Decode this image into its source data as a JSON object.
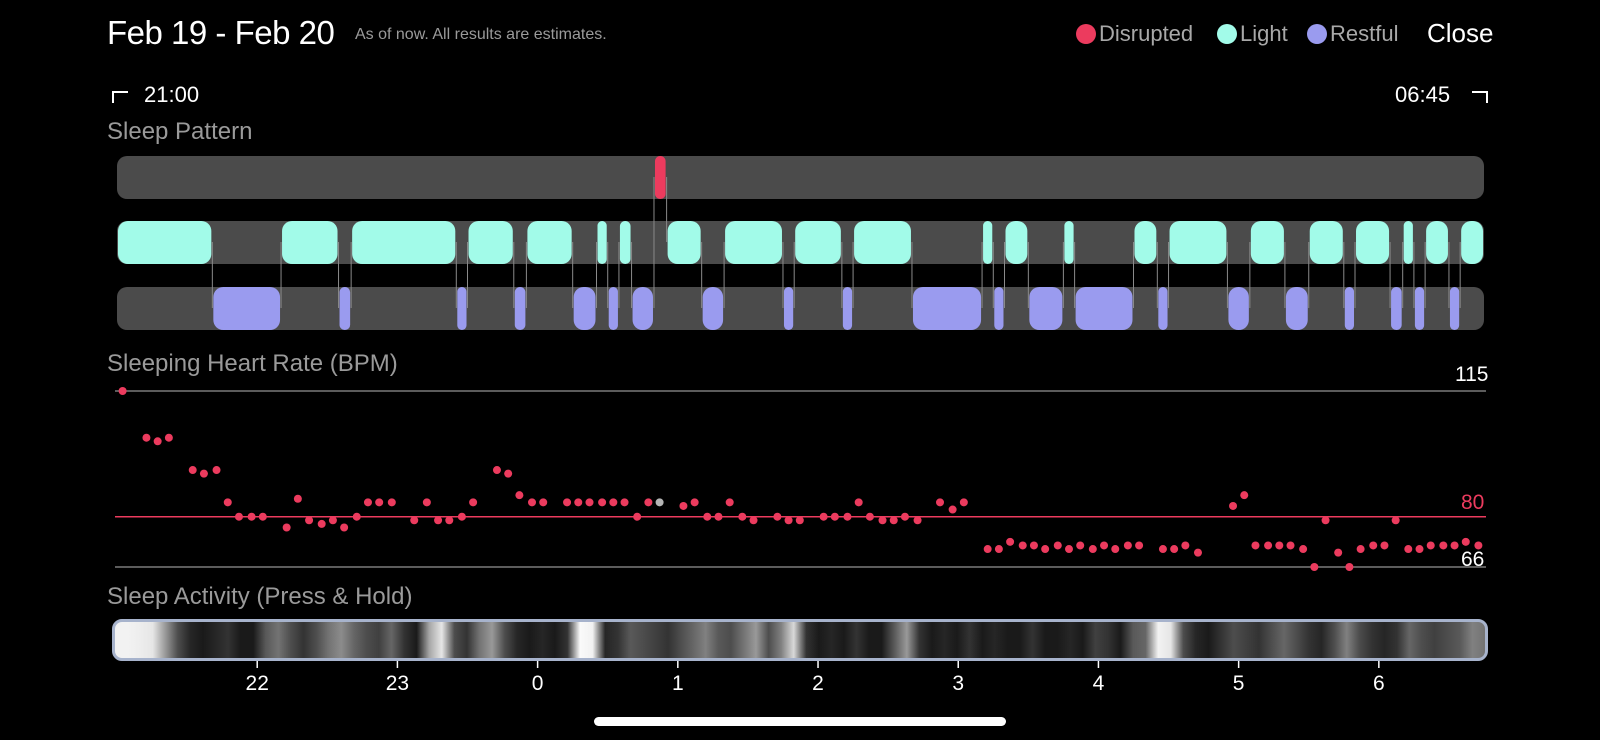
{
  "header": {
    "title": "Feb 19 - Feb 20",
    "subtitle": "As of now. All results are estimates.",
    "close_label": "Close"
  },
  "legend": [
    {
      "label": "Disrupted",
      "color": "#ec3b5e"
    },
    {
      "label": "Light",
      "color": "#a2fbe9"
    },
    {
      "label": "Restful",
      "color": "#9a9bef"
    }
  ],
  "time_range": {
    "start": "21:00",
    "end": "06:45"
  },
  "sleep_pattern": {
    "title": "Sleep Pattern",
    "colors": {
      "disrupted": "#ec3b5e",
      "light": "#a2fbe9",
      "restful": "#9a9bef",
      "track": "#4b4b4b"
    },
    "segments": [
      {
        "stage": "light",
        "start": 21.0,
        "end": 21.68
      },
      {
        "stage": "restful",
        "start": 21.68,
        "end": 22.17
      },
      {
        "stage": "light",
        "start": 22.17,
        "end": 22.58
      },
      {
        "stage": "restful",
        "start": 22.58,
        "end": 22.67
      },
      {
        "stage": "light",
        "start": 22.67,
        "end": 23.42
      },
      {
        "stage": "restful",
        "start": 23.42,
        "end": 23.5
      },
      {
        "stage": "light",
        "start": 23.5,
        "end": 23.83
      },
      {
        "stage": "restful",
        "start": 23.83,
        "end": 23.92
      },
      {
        "stage": "light",
        "start": 23.92,
        "end": 24.25
      },
      {
        "stage": "restful",
        "start": 24.25,
        "end": 24.42
      },
      {
        "stage": "light",
        "start": 24.42,
        "end": 24.5
      },
      {
        "stage": "restful",
        "start": 24.5,
        "end": 24.58
      },
      {
        "stage": "light",
        "start": 24.58,
        "end": 24.67
      },
      {
        "stage": "restful",
        "start": 24.67,
        "end": 24.83
      },
      {
        "stage": "disrupted",
        "start": 24.83,
        "end": 24.92
      },
      {
        "stage": "light",
        "start": 24.92,
        "end": 25.17
      },
      {
        "stage": "restful",
        "start": 25.17,
        "end": 25.33
      },
      {
        "stage": "light",
        "start": 25.33,
        "end": 25.75
      },
      {
        "stage": "restful",
        "start": 25.75,
        "end": 25.83
      },
      {
        "stage": "light",
        "start": 25.83,
        "end": 26.17
      },
      {
        "stage": "restful",
        "start": 26.17,
        "end": 26.25
      },
      {
        "stage": "light",
        "start": 26.25,
        "end": 26.67
      },
      {
        "stage": "restful",
        "start": 26.67,
        "end": 27.17
      },
      {
        "stage": "light",
        "start": 27.17,
        "end": 27.25
      },
      {
        "stage": "restful",
        "start": 27.25,
        "end": 27.33
      },
      {
        "stage": "light",
        "start": 27.33,
        "end": 27.5
      },
      {
        "stage": "restful",
        "start": 27.5,
        "end": 27.75
      },
      {
        "stage": "light",
        "start": 27.75,
        "end": 27.83
      },
      {
        "stage": "restful",
        "start": 27.83,
        "end": 28.25
      },
      {
        "stage": "light",
        "start": 28.25,
        "end": 28.42
      },
      {
        "stage": "restful",
        "start": 28.42,
        "end": 28.5
      },
      {
        "stage": "light",
        "start": 28.5,
        "end": 28.92
      },
      {
        "stage": "restful",
        "start": 28.92,
        "end": 29.08
      },
      {
        "stage": "light",
        "start": 29.08,
        "end": 29.33
      },
      {
        "stage": "restful",
        "start": 29.33,
        "end": 29.5
      },
      {
        "stage": "light",
        "start": 29.5,
        "end": 29.75
      },
      {
        "stage": "restful",
        "start": 29.75,
        "end": 29.83
      },
      {
        "stage": "light",
        "start": 29.83,
        "end": 30.08
      },
      {
        "stage": "restful",
        "start": 30.08,
        "end": 30.17
      },
      {
        "stage": "light",
        "start": 30.17,
        "end": 30.25
      },
      {
        "stage": "restful",
        "start": 30.25,
        "end": 30.33
      },
      {
        "stage": "light",
        "start": 30.33,
        "end": 30.5
      },
      {
        "stage": "restful",
        "start": 30.5,
        "end": 30.58
      },
      {
        "stage": "light",
        "start": 30.58,
        "end": 30.75
      }
    ]
  },
  "heart_rate": {
    "title": "Sleeping Heart Rate (BPM)",
    "max_label": "115",
    "avg_label": "80",
    "min_label": "66",
    "colors": {
      "point": "#ec3b5e",
      "avg_line": "#ec3b5e",
      "axis_line": "#7a7a7a",
      "highlight": "#b5b5b5"
    },
    "chart_data": {
      "type": "scatter",
      "x_unit": "hours since midnight of Feb 19",
      "y_unit": "BPM",
      "ylim": [
        66,
        115
      ],
      "xlim": [
        21.0,
        30.75
      ],
      "reference_lines": [
        115,
        80,
        66
      ],
      "highlight_index": 46,
      "points": [
        [
          21.04,
          115
        ],
        [
          21.21,
          102
        ],
        [
          21.29,
          101
        ],
        [
          21.37,
          102
        ],
        [
          21.54,
          93
        ],
        [
          21.62,
          92
        ],
        [
          21.71,
          93
        ],
        [
          21.79,
          84
        ],
        [
          21.87,
          80
        ],
        [
          21.96,
          80
        ],
        [
          22.04,
          80
        ],
        [
          22.21,
          77
        ],
        [
          22.29,
          85
        ],
        [
          22.37,
          79
        ],
        [
          22.46,
          78
        ],
        [
          22.54,
          79
        ],
        [
          22.62,
          77
        ],
        [
          22.71,
          80
        ],
        [
          22.79,
          84
        ],
        [
          22.87,
          84
        ],
        [
          22.96,
          84
        ],
        [
          23.12,
          79
        ],
        [
          23.21,
          84
        ],
        [
          23.29,
          79
        ],
        [
          23.37,
          79
        ],
        [
          23.46,
          80
        ],
        [
          23.54,
          84
        ],
        [
          23.71,
          93
        ],
        [
          23.79,
          92
        ],
        [
          23.87,
          86
        ],
        [
          23.96,
          84
        ],
        [
          24.04,
          84
        ],
        [
          24.21,
          84
        ],
        [
          24.29,
          84
        ],
        [
          24.37,
          84
        ],
        [
          24.46,
          84
        ],
        [
          24.54,
          84
        ],
        [
          24.62,
          84
        ],
        [
          24.71,
          80
        ],
        [
          24.79,
          84
        ],
        [
          25.04,
          83
        ],
        [
          25.12,
          84
        ],
        [
          25.21,
          80
        ],
        [
          25.29,
          80
        ],
        [
          25.37,
          84
        ],
        [
          25.46,
          80
        ],
        [
          24.87,
          84
        ],
        [
          25.54,
          79
        ],
        [
          25.71,
          80
        ],
        [
          25.79,
          79
        ],
        [
          25.87,
          79
        ],
        [
          26.04,
          80
        ],
        [
          26.12,
          80
        ],
        [
          26.21,
          80
        ],
        [
          26.29,
          84
        ],
        [
          26.37,
          80
        ],
        [
          26.46,
          79
        ],
        [
          26.54,
          79
        ],
        [
          26.62,
          80
        ],
        [
          26.71,
          79
        ],
        [
          26.87,
          84
        ],
        [
          26.96,
          82
        ],
        [
          27.04,
          84
        ],
        [
          27.21,
          71
        ],
        [
          27.29,
          71
        ],
        [
          27.37,
          73
        ],
        [
          27.46,
          72
        ],
        [
          27.54,
          72
        ],
        [
          27.62,
          71
        ],
        [
          27.71,
          72
        ],
        [
          27.79,
          71
        ],
        [
          27.87,
          72
        ],
        [
          27.96,
          71
        ],
        [
          28.04,
          72
        ],
        [
          28.12,
          71
        ],
        [
          28.21,
          72
        ],
        [
          28.29,
          72
        ],
        [
          28.46,
          71
        ],
        [
          28.54,
          71
        ],
        [
          28.62,
          72
        ],
        [
          28.71,
          70
        ],
        [
          28.96,
          83
        ],
        [
          29.04,
          86
        ],
        [
          29.12,
          72
        ],
        [
          29.21,
          72
        ],
        [
          29.29,
          72
        ],
        [
          29.37,
          72
        ],
        [
          29.46,
          71
        ],
        [
          29.54,
          66
        ],
        [
          29.62,
          79
        ],
        [
          29.71,
          70
        ],
        [
          29.79,
          66
        ],
        [
          29.87,
          71
        ],
        [
          29.96,
          72
        ],
        [
          30.04,
          72
        ],
        [
          30.12,
          79
        ],
        [
          30.21,
          71
        ],
        [
          30.29,
          71
        ],
        [
          30.37,
          72
        ],
        [
          30.46,
          72
        ],
        [
          30.54,
          72
        ],
        [
          30.62,
          73
        ],
        [
          30.71,
          72
        ]
      ]
    }
  },
  "sleep_activity": {
    "title": "Sleep Activity (Press & Hold)",
    "border_color": "#a7b3cc",
    "levels": [
      0.95,
      0.95,
      0.93,
      0.9,
      0.6,
      0.3,
      0.15,
      0.1,
      0.15,
      0.2,
      0.1,
      0.1,
      0.35,
      0.45,
      0.3,
      0.2,
      0.3,
      0.45,
      0.55,
      0.4,
      0.3,
      0.25,
      0.4,
      0.2,
      0.1,
      0.65,
      0.9,
      0.3,
      0.2,
      0.45,
      0.6,
      0.3,
      0.15,
      0.1,
      0.15,
      0.1,
      0.2,
      0.98,
      0.95,
      0.15,
      0.2,
      0.35,
      0.3,
      0.25,
      0.2,
      0.3,
      0.4,
      0.5,
      0.35,
      0.3,
      0.45,
      0.6,
      0.3,
      0.5,
      0.85,
      0.2,
      0.1,
      0.15,
      0.1,
      0.2,
      0.1,
      0.1,
      0.35,
      0.6,
      0.2,
      0.1,
      0.15,
      0.1,
      0.2,
      0.1,
      0.15,
      0.1,
      0.1,
      0.2,
      0.1,
      0.1,
      0.15,
      0.1,
      0.25,
      0.2,
      0.1,
      0.35,
      0.4,
      0.95,
      0.9,
      0.3,
      0.15,
      0.1,
      0.2,
      0.3,
      0.25,
      0.2,
      0.3,
      0.4,
      0.3,
      0.2,
      0.15,
      0.3,
      0.5,
      0.3,
      0.2,
      0.15,
      0.2,
      0.4,
      0.3,
      0.25,
      0.3,
      0.35,
      0.5,
      0.45
    ]
  },
  "x_axis": {
    "ticks": [
      {
        "label": "22",
        "hour": 22
      },
      {
        "label": "23",
        "hour": 23
      },
      {
        "label": "0",
        "hour": 24
      },
      {
        "label": "1",
        "hour": 25
      },
      {
        "label": "2",
        "hour": 26
      },
      {
        "label": "3",
        "hour": 27
      },
      {
        "label": "4",
        "hour": 28
      },
      {
        "label": "5",
        "hour": 29
      },
      {
        "label": "6",
        "hour": 30
      }
    ]
  }
}
